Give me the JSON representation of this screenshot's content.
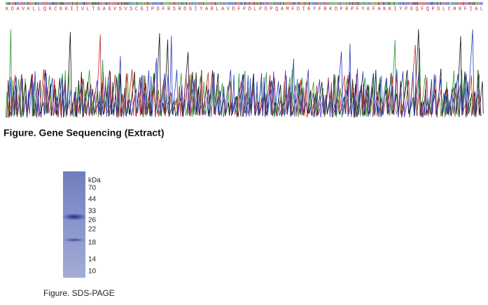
{
  "sequencing": {
    "protein_sequence": "K D A V K L L Q K C K K I I V L T G A G V S V S C G I P D F R S R D G I Y A R L A V D F P D L P D P Q A M F D I K Y F R K D P R P F Y K F A K K I Y P G Q F Q P S L C H K F I A L",
    "caption": "Figure. Gene Sequencing (Extract)"
  },
  "sds_page": {
    "unit": "kDa",
    "markers": [
      70,
      44,
      33,
      26,
      22,
      18,
      14,
      10
    ],
    "caption": "Figure. SDS-PAGE"
  }
}
